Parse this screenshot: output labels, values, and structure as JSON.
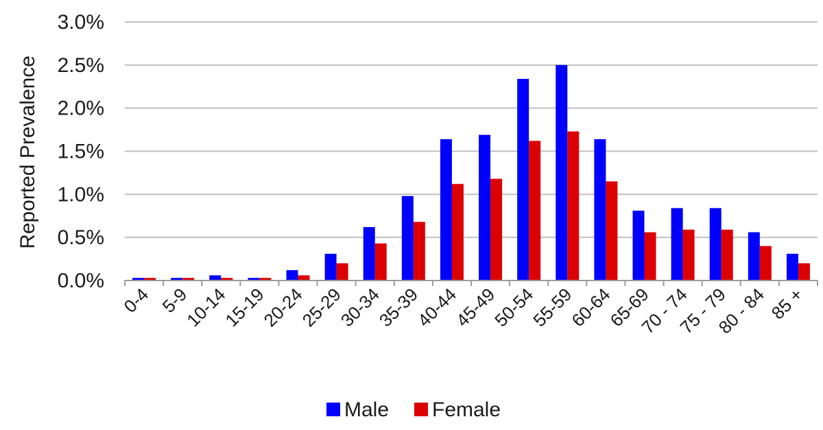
{
  "chart_data": {
    "type": "bar",
    "title": "",
    "xlabel": "",
    "ylabel": "Reported Prevalence",
    "ylim": [
      0,
      3.0
    ],
    "y_unit": "%",
    "y_ticks": [
      "0.0%",
      "0.5%",
      "1.0%",
      "1.5%",
      "2.0%",
      "2.5%",
      "3.0%"
    ],
    "grid": true,
    "legend_position": "bottom",
    "categories": [
      "0-4",
      "5-9",
      "10-14",
      "15-19",
      "20-24",
      "25-29",
      "30-34",
      "35-39",
      "40-44",
      "45-49",
      "50-54",
      "55-59",
      "60-64",
      "65-69",
      "70 - 74",
      "75 - 79",
      "80 - 84",
      "85 +"
    ],
    "series": [
      {
        "name": "Male",
        "color": "#0000ff",
        "values": [
          0.03,
          0.03,
          0.06,
          0.03,
          0.12,
          0.31,
          0.62,
          0.98,
          1.64,
          1.69,
          2.34,
          2.5,
          1.64,
          0.81,
          0.84,
          0.84,
          0.56,
          0.31
        ]
      },
      {
        "name": "Female",
        "color": "#dd0000",
        "values": [
          0.03,
          0.03,
          0.03,
          0.03,
          0.06,
          0.2,
          0.43,
          0.68,
          1.12,
          1.18,
          1.62,
          1.73,
          1.15,
          0.56,
          0.59,
          0.59,
          0.4,
          0.2
        ]
      }
    ]
  }
}
